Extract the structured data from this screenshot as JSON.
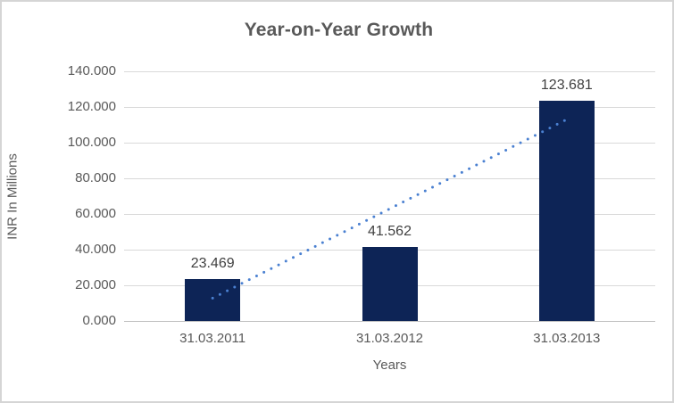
{
  "chart_data": {
    "type": "bar",
    "title": "Year-on-Year Growth",
    "xlabel": "Years",
    "ylabel": "INR In Millions",
    "categories": [
      "31.03.2011",
      "31.03.2012",
      "31.03.2013"
    ],
    "values": [
      23.469,
      41.562,
      123.681
    ],
    "data_labels": [
      "23.469",
      "41.562",
      "123.681"
    ],
    "ylim": [
      0,
      140
    ],
    "ytick_step": 20,
    "ytick_labels": [
      "0.000",
      "20.000",
      "40.000",
      "60.000",
      "80.000",
      "100.000",
      "120.000",
      "140.000"
    ],
    "grid": true,
    "legend": "none",
    "trendline": {
      "type": "linear",
      "style": "dotted",
      "start_value": 12.8,
      "end_value": 113.0
    },
    "colors": {
      "bar": "#0d2456",
      "trendline": "#4a80d1",
      "gridline": "#d9d9d9",
      "axis_line": "#c0c0c0",
      "text": "#595959",
      "data_label": "#404040",
      "border": "#d5d5d5",
      "background": "#ffffff"
    }
  }
}
